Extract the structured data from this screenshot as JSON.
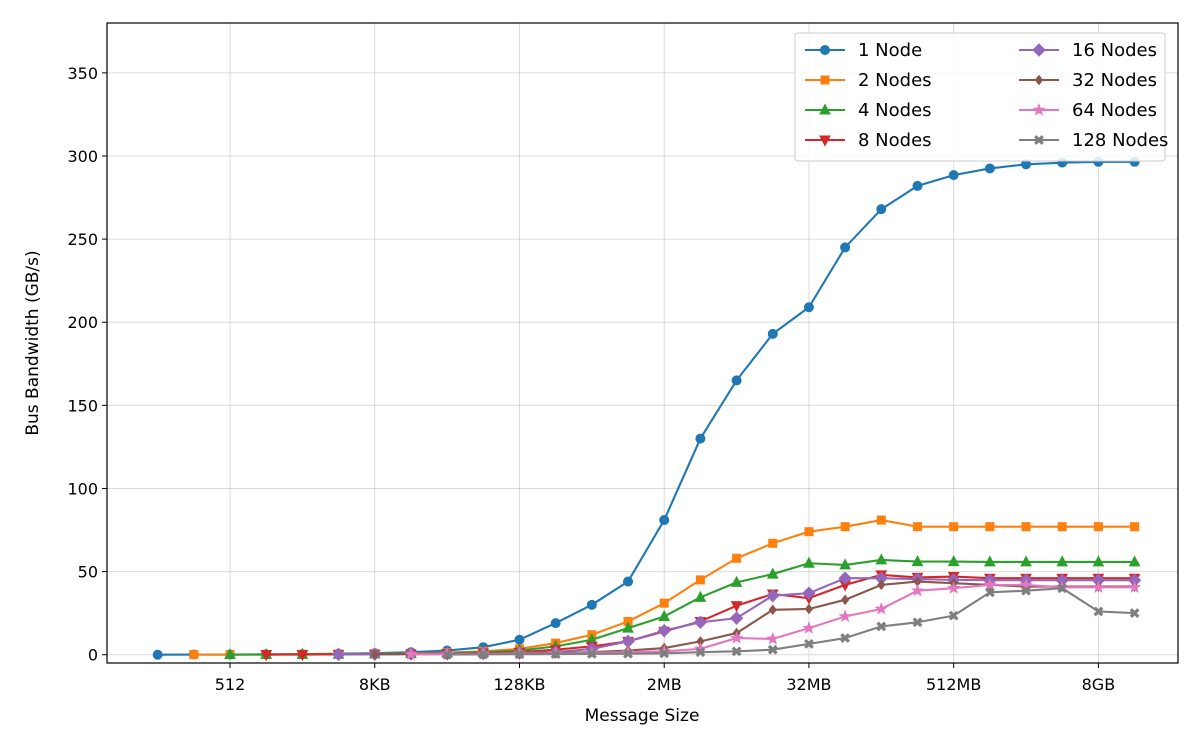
{
  "chart_data": {
    "type": "line",
    "xlabel": "Message Size",
    "ylabel": "Bus Bandwidth (GB/s)",
    "x_index": [
      0,
      1,
      2,
      3,
      4,
      5,
      6,
      7,
      8,
      9,
      10,
      11,
      12,
      13,
      14,
      15,
      16,
      17,
      18,
      19,
      20,
      21,
      22,
      23,
      24,
      25,
      26,
      27
    ],
    "x_ticks": [
      {
        "index": 2,
        "label": "512"
      },
      {
        "index": 6,
        "label": "8KB"
      },
      {
        "index": 10,
        "label": "128KB"
      },
      {
        "index": 14,
        "label": "2MB"
      },
      {
        "index": 18,
        "label": "32MB"
      },
      {
        "index": 22,
        "label": "512MB"
      },
      {
        "index": 26,
        "label": "8GB"
      }
    ],
    "y_ticks": [
      0,
      50,
      100,
      150,
      200,
      250,
      300,
      350
    ],
    "xlim": [
      -1.4,
      28.2
    ],
    "ylim": [
      -5,
      380
    ],
    "grid": true,
    "legend_position": "top-right",
    "series": [
      {
        "name": "1 Node",
        "color": "#1f77b4",
        "marker": "circle",
        "start": 0,
        "values": [
          0.0,
          0.1,
          0.1,
          0.2,
          0.3,
          0.6,
          0.9,
          1.5,
          2.5,
          4.5,
          9.0,
          19.0,
          30.0,
          44.0,
          81.0,
          130.0,
          165.0,
          193.0,
          209.0,
          245.0,
          268.0,
          282.0,
          288.5,
          292.5,
          295.0,
          296.0,
          296.5,
          296.5
        ]
      },
      {
        "name": "2 Nodes",
        "color": "#ff7f0e",
        "marker": "square",
        "start": 1,
        "values": [
          0.1,
          0.1,
          0.1,
          0.2,
          0.3,
          0.5,
          0.8,
          1.2,
          2.0,
          3.5,
          7.0,
          12.0,
          20.0,
          31.0,
          45.0,
          58.0,
          67.0,
          74.0,
          77.0,
          81.0,
          77.0,
          77.0,
          77.0,
          77.0,
          77.0,
          77.0,
          77.0
        ]
      },
      {
        "name": "4 Nodes",
        "color": "#2ca02c",
        "marker": "triangle-up",
        "start": 2,
        "values": [
          0.1,
          0.1,
          0.2,
          0.3,
          0.5,
          0.7,
          1.0,
          1.5,
          2.5,
          5.0,
          9.0,
          16.0,
          23.0,
          34.5,
          43.5,
          48.5,
          55.0,
          54.0,
          57.0,
          56.0,
          56.0,
          55.8,
          55.8,
          55.8,
          55.8,
          55.8
        ]
      },
      {
        "name": "8 Nodes",
        "color": "#d62728",
        "marker": "triangle-down",
        "start": 3,
        "values": [
          0.1,
          0.1,
          0.2,
          0.3,
          0.5,
          0.7,
          1.0,
          1.5,
          3.0,
          5.0,
          8.0,
          14.0,
          20.0,
          29.5,
          36.5,
          34.0,
          42.0,
          48.0,
          46.5,
          47.0,
          46.0,
          46.0,
          46.0,
          46.0,
          46.0
        ]
      },
      {
        "name": "16 Nodes",
        "color": "#9467bd",
        "marker": "diamond",
        "start": 5,
        "values": [
          0.2,
          0.3,
          0.4,
          0.5,
          0.7,
          1.0,
          1.5,
          3.5,
          8.0,
          14.5,
          19.5,
          22.0,
          35.5,
          37.0,
          46.0,
          46.0,
          45.5,
          45.0,
          44.8,
          44.8,
          44.8,
          44.8,
          44.8
        ]
      },
      {
        "name": "32 Nodes",
        "color": "#8c564b",
        "marker": "diamond-thin",
        "start": 6,
        "values": [
          0.2,
          0.3,
          0.4,
          0.6,
          0.8,
          1.0,
          1.5,
          2.5,
          4.0,
          8.0,
          13.0,
          27.0,
          27.5,
          33.0,
          42.0,
          44.0,
          43.0,
          42.0,
          41.0,
          41.0,
          41.0,
          41.0
        ]
      },
      {
        "name": "64 Nodes",
        "color": "#e377c2",
        "marker": "star",
        "start": 7,
        "values": [
          0.2,
          0.3,
          0.4,
          0.6,
          0.7,
          1.0,
          1.5,
          2.0,
          3.5,
          10.0,
          9.5,
          16.0,
          23.0,
          27.5,
          38.5,
          40.0,
          42.0,
          42.0,
          40.5,
          40.5,
          40.5
        ]
      },
      {
        "name": "128 Nodes",
        "color": "#7f7f7f",
        "marker": "x",
        "start": 8,
        "values": [
          0.1,
          0.2,
          0.3,
          0.4,
          0.5,
          0.6,
          0.8,
          1.5,
          2.0,
          3.0,
          6.5,
          10.0,
          17.0,
          19.5,
          23.5,
          37.5,
          38.5,
          40.0,
          26.0,
          25.0
        ]
      }
    ]
  }
}
